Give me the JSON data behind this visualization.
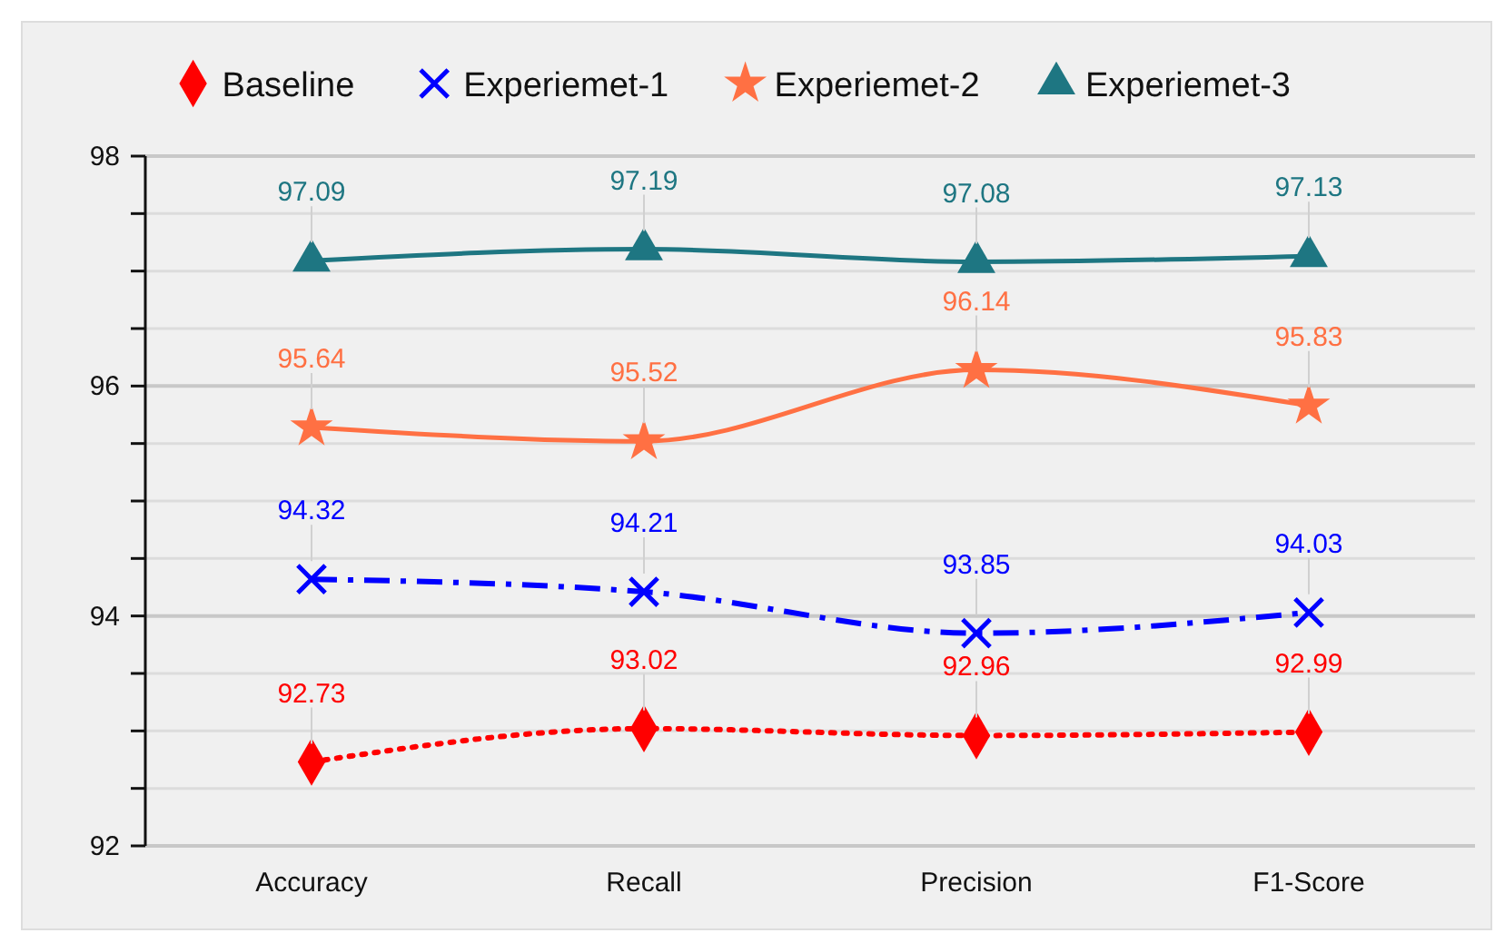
{
  "chart_data": {
    "type": "line",
    "categories": [
      "Accuracy",
      "Recall",
      "Precision",
      "F1-Score"
    ],
    "series": [
      {
        "name": "Baseline",
        "color": "#ff0000",
        "values": [
          92.73,
          93.02,
          92.96,
          92.99
        ],
        "marker": "diamond",
        "line_style": "dotted"
      },
      {
        "name": "Experiemet-1",
        "color": "#0000ff",
        "values": [
          94.32,
          94.21,
          93.85,
          94.03
        ],
        "marker": "cross",
        "line_style": "dashed"
      },
      {
        "name": "Experiemet-2",
        "color": "#ff7043",
        "values": [
          95.64,
          95.52,
          96.14,
          95.83
        ],
        "marker": "star",
        "line_style": "solid"
      },
      {
        "name": "Experiemet-3",
        "color": "#1e7682",
        "values": [
          97.09,
          97.19,
          97.08,
          97.13
        ],
        "marker": "triangle",
        "line_style": "solid"
      }
    ],
    "ylim": [
      92,
      98
    ],
    "yticks": [
      92,
      {
        "value": 92.5,
        "label": null
      },
      {
        "value": 93,
        "label": null
      },
      {
        "value": 93.5,
        "label": null
      },
      94,
      {
        "value": 94.5,
        "label": null
      },
      {
        "value": 95,
        "label": null
      },
      {
        "value": 95.5,
        "label": null
      },
      96,
      {
        "value": 96.5,
        "label": null
      },
      {
        "value": 97,
        "label": null
      },
      {
        "value": 97.5,
        "label": null
      },
      98
    ],
    "grid": "y",
    "legend": "top",
    "data_labels": true
  }
}
